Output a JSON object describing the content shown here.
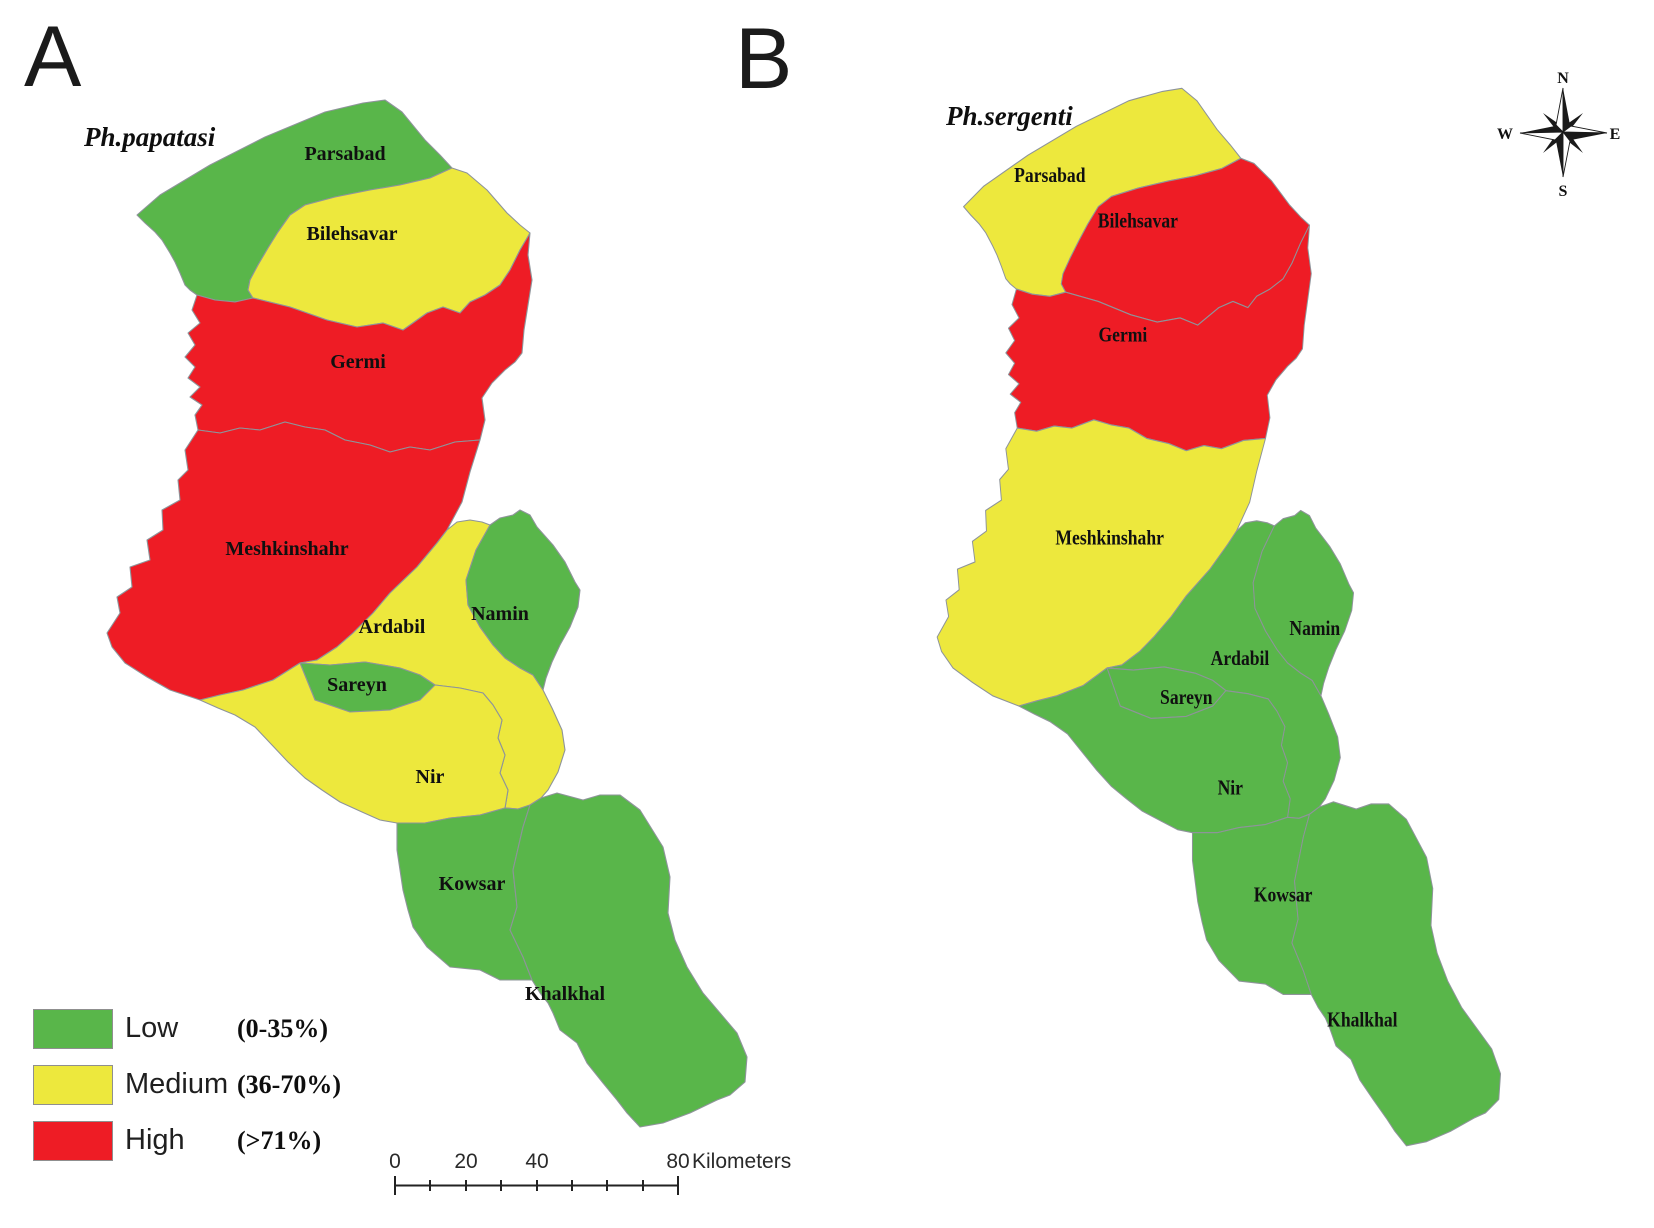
{
  "figure": {
    "panels": [
      {
        "letter": "A",
        "title": "Ph.papatasi",
        "districts": {
          "parsabad": "low",
          "bilehsavar": "medium",
          "germi": "high",
          "meshkinshahr": "high",
          "ardabil": "medium",
          "namin": "low",
          "sareyn": "low",
          "nir": "medium",
          "kowsar": "low",
          "khalkhal": "low"
        }
      },
      {
        "letter": "B",
        "title": "Ph.sergenti",
        "districts": {
          "parsabad": "medium",
          "bilehsavar": "high",
          "germi": "high",
          "meshkinshahr": "medium",
          "ardabil": "low",
          "namin": "low",
          "sareyn": "low",
          "nir": "low",
          "kowsar": "low",
          "khalkhal": "low"
        }
      }
    ],
    "district_labels": {
      "parsabad": "Parsabad",
      "bilehsavar": "Bilehsavar",
      "germi": "Germi",
      "meshkinshahr": "Meshkinshahr",
      "ardabil": "Ardabil",
      "namin": "Namin",
      "sareyn": "Sareyn",
      "nir": "Nir",
      "kowsar": "Kowsar",
      "khalkhal": "Khalkhal"
    },
    "legend": {
      "items": [
        {
          "id": "low",
          "label": "Low",
          "range": "(0-35%)",
          "color": "#59B64A"
        },
        {
          "id": "medium",
          "label": "Medium",
          "range": "(36-70%)",
          "color": "#EDE83D"
        },
        {
          "id": "high",
          "label": "High",
          "range": "(>71%)",
          "color": "#EE1C25"
        }
      ]
    },
    "scalebar": {
      "labels": [
        "0",
        "20",
        "40",
        "80"
      ],
      "unit": "Kilometers"
    },
    "compass": {
      "n": "N",
      "e": "E",
      "s": "S",
      "w": "W"
    }
  }
}
